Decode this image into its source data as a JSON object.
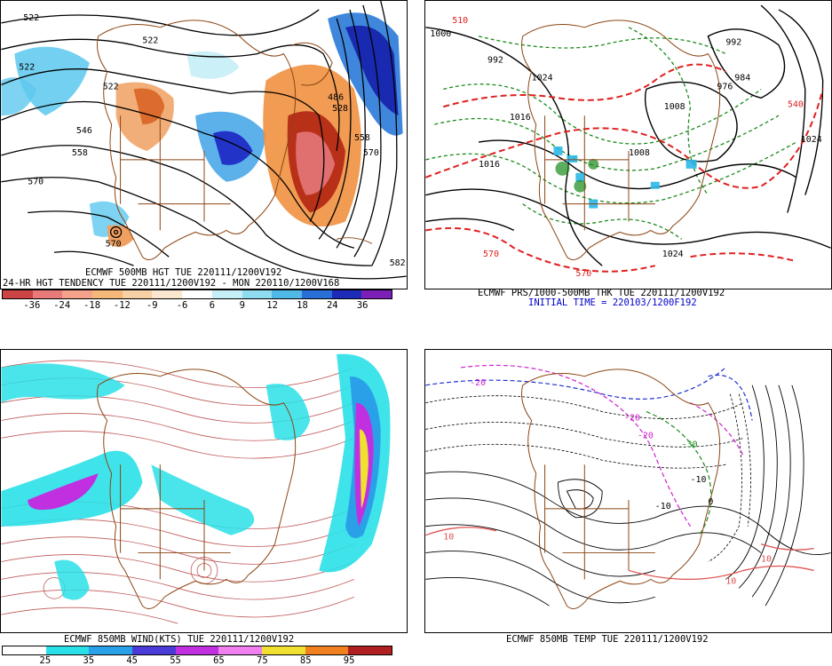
{
  "panel1": {
    "title_line1": "ECMWF 500MB HGT TUE 220111/1200V192",
    "title_line2": "24-HR HGT TENDENCY TUE 220111/1200V192 - MON 220110/1200V168",
    "scale_ticks": [
      "-36",
      "-24",
      "-18",
      "-12",
      "-9",
      "-6",
      "6",
      "9",
      "12",
      "18",
      "24",
      "36"
    ],
    "scale_colors": [
      "#cc4444",
      "#e87a7a",
      "#f4a38a",
      "#f5b87a",
      "#f7d0a6",
      "#fbe6cf",
      "#ffffff",
      "#c6eef7",
      "#8fdbf0",
      "#4fb8e6",
      "#2a6fd8",
      "#1e2bb8",
      "#7a1fb8"
    ],
    "contour_labels": [
      "522",
      "522",
      "522",
      "522",
      "546",
      "558",
      "570",
      "570",
      "486",
      "528",
      "558",
      "570",
      "582"
    ]
  },
  "panel2": {
    "title_line1": "ECMWF PRS/1000-500MB THK TUE 220111/1200V192",
    "title_line2": "INITIAL TIME = 220103/1200F192",
    "contour_labels": [
      "1016",
      "1016",
      "1008",
      "1008",
      "1024",
      "1000",
      "992",
      "992",
      "976",
      "984",
      "1024",
      "1024",
      "510",
      "570",
      "570",
      "540"
    ]
  },
  "panel3": {
    "title": "ECMWF 850MB WIND(KTS) TUE 220111/1200V192",
    "scale_ticks": [
      "25",
      "35",
      "45",
      "55",
      "65",
      "75",
      "85",
      "95"
    ],
    "scale_colors": [
      "#ffffff",
      "#2ae0e8",
      "#2aa0e8",
      "#4a3ad8",
      "#c030e0",
      "#f080f0",
      "#f0e030",
      "#f08020",
      "#b02020"
    ]
  },
  "panel4": {
    "title": "ECMWF 850MB TEMP TUE 220111/1200V192",
    "contour_labels": [
      "-20",
      "-20",
      "-30",
      "-20",
      "-10",
      "-10",
      "0",
      "10",
      "10",
      "10"
    ]
  },
  "colors": {
    "coast": "#8b4513",
    "contour": "#000000",
    "warm": "#e8742a",
    "cold": "#2a8ae0",
    "thickness": "#e02020",
    "precip": "#1a8a1a",
    "wind_line": "#b03030"
  }
}
